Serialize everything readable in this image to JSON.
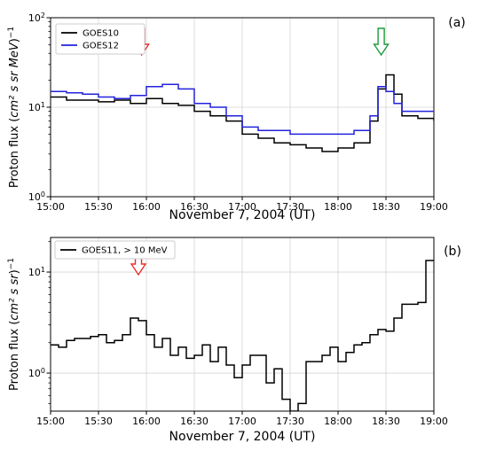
{
  "chart_data": [
    {
      "type": "line",
      "panel_label": "(a)",
      "xlabel": "November 7, 2004 (UT)",
      "ylabel_main": "Proton flux (",
      "ylabel_unit_text": "cm² s sr MeV",
      "ylabel_close": ")",
      "ylabel_exp": "−1",
      "x_tick_labels": [
        "15:00",
        "15:30",
        "16:00",
        "16:30",
        "17:00",
        "17:30",
        "18:00",
        "18:30",
        "19:00"
      ],
      "xlim": [
        "15:00",
        "19:00"
      ],
      "yscale": "log",
      "ylim": [
        1,
        100
      ],
      "y_tick_labels": [
        {
          "value": 1,
          "base": "10",
          "exp": "0"
        },
        {
          "value": 10,
          "base": "10",
          "exp": "1"
        },
        {
          "value": 100,
          "base": "10",
          "exp": "2"
        }
      ],
      "grid": true,
      "legend_position": "top-left",
      "series": [
        {
          "name": "GOES10",
          "color": "#000000",
          "x": [
            "15:00",
            "15:10",
            "15:20",
            "15:30",
            "15:40",
            "15:50",
            "16:00",
            "16:10",
            "16:20",
            "16:30",
            "16:40",
            "16:50",
            "17:00",
            "17:10",
            "17:20",
            "17:30",
            "17:40",
            "17:50",
            "18:00",
            "18:10",
            "18:20",
            "18:25",
            "18:30",
            "18:35",
            "18:40",
            "18:50",
            "19:00"
          ],
          "y": [
            13,
            12,
            12,
            11.5,
            12,
            11,
            12.5,
            11,
            10.5,
            9,
            8,
            7,
            5,
            4.5,
            4,
            3.8,
            3.5,
            3.2,
            3.5,
            4,
            7,
            16,
            23,
            14,
            8,
            7.5,
            7
          ]
        },
        {
          "name": "GOES12",
          "color": "#2222dd",
          "x": [
            "15:00",
            "15:10",
            "15:20",
            "15:30",
            "15:40",
            "15:50",
            "16:00",
            "16:10",
            "16:20",
            "16:30",
            "16:40",
            "16:50",
            "17:00",
            "17:10",
            "17:20",
            "17:30",
            "17:40",
            "17:50",
            "18:00",
            "18:10",
            "18:20",
            "18:25",
            "18:30",
            "18:35",
            "18:40",
            "18:50",
            "19:00"
          ],
          "y": [
            15,
            14.5,
            14,
            13,
            12.5,
            13.5,
            17,
            18,
            16,
            11,
            10,
            8,
            6,
            5.5,
            5.5,
            5,
            5,
            5,
            5,
            5.5,
            8,
            17,
            15,
            11,
            9,
            9,
            9
          ]
        }
      ],
      "annotations": [
        {
          "type": "arrow-down",
          "x": "15:57",
          "color": "#e8302a"
        },
        {
          "type": "arrow-down",
          "x": "18:27",
          "color": "#1a9a3a"
        }
      ]
    },
    {
      "type": "line",
      "panel_label": "(b)",
      "xlabel": "November 7, 2004 (UT)",
      "ylabel_main": "Proton flux (",
      "ylabel_unit_text": "cm² s sr",
      "ylabel_close": ")",
      "ylabel_exp": "−1",
      "x_tick_labels": [
        "15:00",
        "15:30",
        "16:00",
        "16:30",
        "17:00",
        "17:30",
        "18:00",
        "18:30",
        "19:00"
      ],
      "xlim": [
        "15:00",
        "19:00"
      ],
      "yscale": "log",
      "ylim": [
        0.42,
        22
      ],
      "y_tick_labels": [
        {
          "value": 1,
          "base": "10",
          "exp": "0"
        },
        {
          "value": 10,
          "base": "10",
          "exp": "1"
        }
      ],
      "grid": true,
      "legend_position": "top-left",
      "series": [
        {
          "name": "GOES11, > 10 MeV",
          "color": "#000000",
          "x": [
            "15:00",
            "15:05",
            "15:10",
            "15:15",
            "15:20",
            "15:25",
            "15:30",
            "15:35",
            "15:40",
            "15:45",
            "15:50",
            "15:55",
            "16:00",
            "16:05",
            "16:10",
            "16:15",
            "16:20",
            "16:25",
            "16:30",
            "16:35",
            "16:40",
            "16:45",
            "16:50",
            "16:55",
            "17:00",
            "17:05",
            "17:10",
            "17:15",
            "17:20",
            "17:25",
            "17:30",
            "17:35",
            "17:40",
            "17:45",
            "17:50",
            "17:55",
            "18:00",
            "18:05",
            "18:10",
            "18:15",
            "18:20",
            "18:25",
            "18:30",
            "18:35",
            "18:40",
            "18:45",
            "18:50",
            "18:55",
            "19:00"
          ],
          "y": [
            1.9,
            1.8,
            2.1,
            2.2,
            2.2,
            2.3,
            2.4,
            2.0,
            2.1,
            2.4,
            3.5,
            3.3,
            2.4,
            1.8,
            2.2,
            1.5,
            1.8,
            1.4,
            1.5,
            1.9,
            1.3,
            1.8,
            1.2,
            0.9,
            1.2,
            1.5,
            1.5,
            0.8,
            1.1,
            0.55,
            0.42,
            0.5,
            1.3,
            1.3,
            1.5,
            1.8,
            1.3,
            1.6,
            1.9,
            2.0,
            2.4,
            2.7,
            2.6,
            3.5,
            4.8,
            4.8,
            5.0,
            13,
            13
          ]
        }
      ],
      "annotations": [
        {
          "type": "arrow-down",
          "x": "15:55",
          "color": "#e8302a"
        }
      ]
    }
  ]
}
